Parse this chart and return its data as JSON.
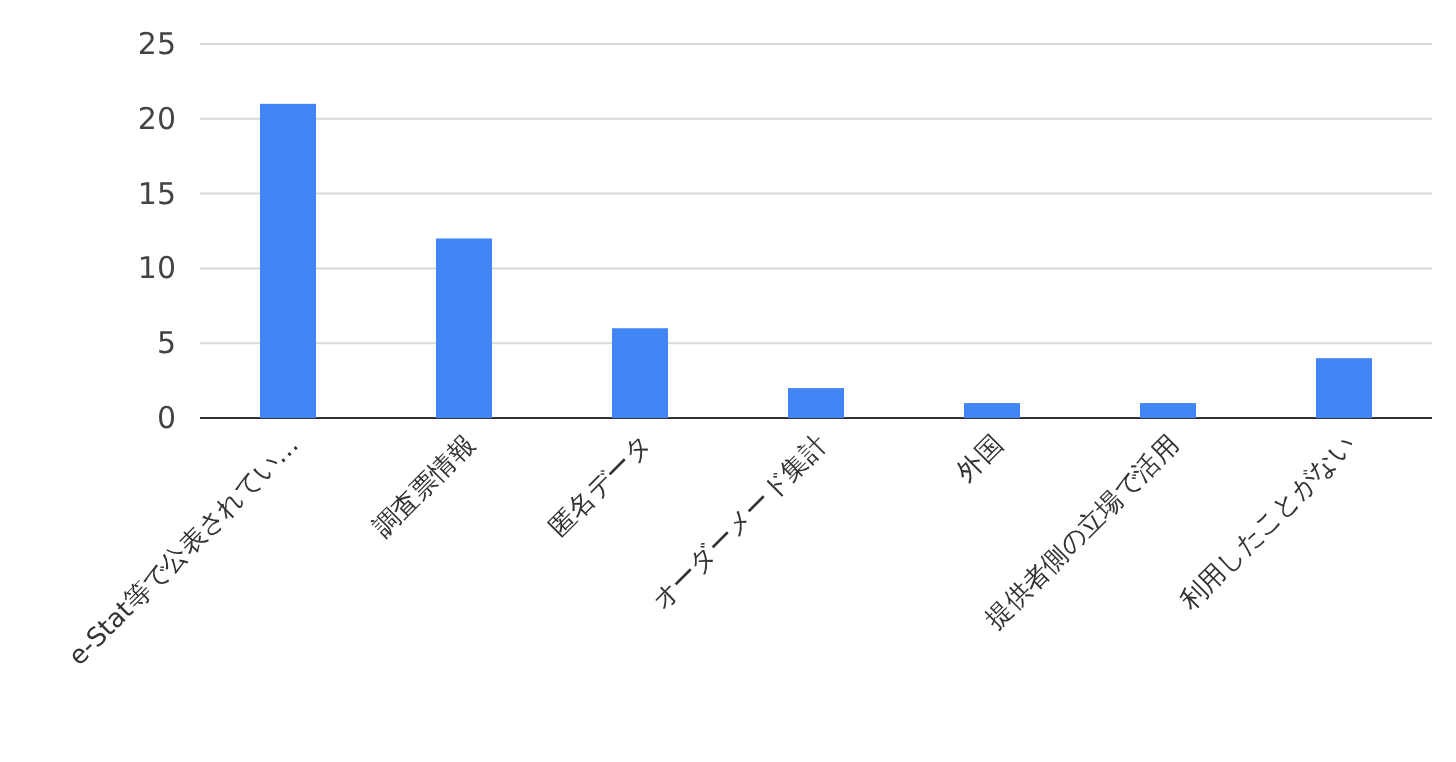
{
  "chart_data": {
    "type": "bar",
    "categories": [
      "e-Stat等で公表されてい…",
      "調査票情報",
      "匿名データ",
      "オーダーメード集計",
      "外国",
      "提供者側の立場で活用",
      "利用したことがない"
    ],
    "values": [
      21,
      12,
      6,
      2,
      1,
      1,
      4
    ],
    "color": "#4285f4",
    "ylim": [
      0,
      25
    ],
    "yticks": [
      0,
      5,
      10,
      15,
      20,
      25
    ],
    "grid": "y"
  }
}
